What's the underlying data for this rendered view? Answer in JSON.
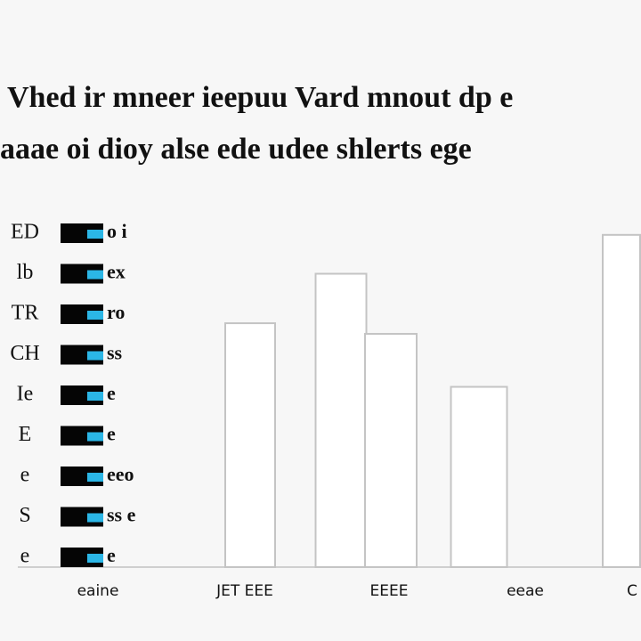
{
  "chart_data": {
    "type": "bar",
    "title": "Vhed ir mneer ieepuu Vard mnout dp e",
    "subtitle": "aaae oi dioy alse ede udee shlerts ege",
    "categories": [
      "eaine",
      "JET EEE",
      null,
      "EEEE",
      "eeae",
      "C"
    ],
    "values": [
      null,
      69,
      83,
      66,
      51,
      94
    ],
    "ylim": [
      0,
      100
    ],
    "color": "#ffffff",
    "legend_items": [
      {
        "icon": "ED",
        "label": "o i"
      },
      {
        "icon": "lb",
        "label": "ex"
      },
      {
        "icon": "TR",
        "label": "ro"
      },
      {
        "icon": "CH",
        "label": "ss"
      },
      {
        "icon": "Ie",
        "label": "e"
      },
      {
        "icon": "E",
        "label": "e"
      },
      {
        "icon": "e",
        "label": "eeo"
      },
      {
        "icon": "S",
        "label": "ss e"
      },
      {
        "icon": "e",
        "label": "e"
      }
    ]
  }
}
